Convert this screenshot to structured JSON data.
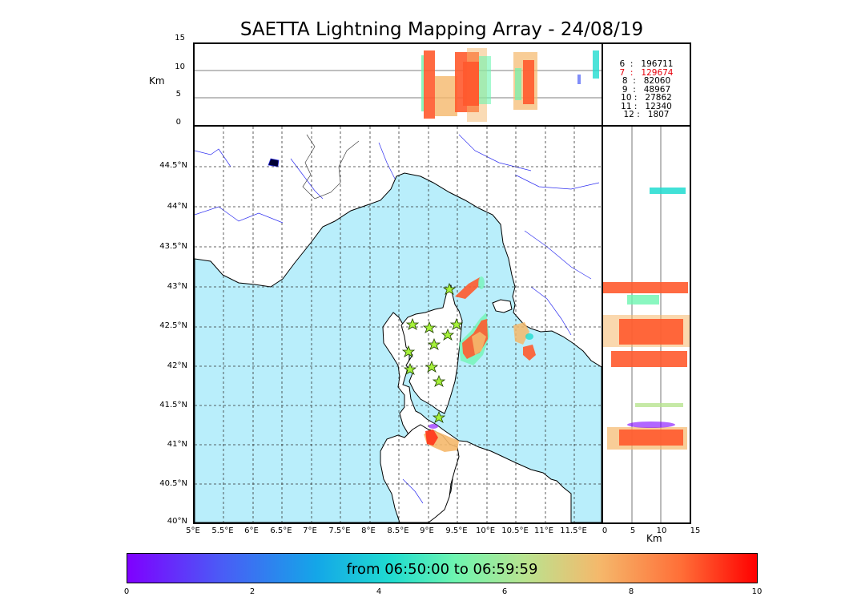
{
  "title": "SAETTA Lightning Mapping Array - 24/08/19",
  "altitude_axis": {
    "unit": "Km",
    "ticks": [
      "15",
      "10",
      "5",
      "0"
    ]
  },
  "side_axis": {
    "unit": "Km",
    "ticks": [
      "0",
      "5",
      "10",
      "15"
    ]
  },
  "map": {
    "lat_ticks": [
      "44.5°N",
      "44°N",
      "43.5°N",
      "43°N",
      "42.5°N",
      "42°N",
      "41.5°N",
      "41°N",
      "40.5°N",
      "40°N"
    ],
    "lon_ticks": [
      "5°E",
      "5.5°E",
      "6°E",
      "6.5°E",
      "7°E",
      "7.5°E",
      "8°E",
      "8.5°E",
      "9°E",
      "9.5°E",
      "10°E",
      "10.5°E",
      "11°E",
      "11.5°E"
    ],
    "sea_color": "#b9eefb",
    "grid": true
  },
  "counts": [
    {
      "level": "6",
      "value": "196711",
      "highlight": false
    },
    {
      "level": "7",
      "value": "129674",
      "highlight": true
    },
    {
      "level": "8",
      "value": "82060",
      "highlight": false
    },
    {
      "level": "9",
      "value": "48967",
      "highlight": false
    },
    {
      "level": "10",
      "value": "27862",
      "highlight": false
    },
    {
      "level": "11",
      "value": "12340",
      "highlight": false
    },
    {
      "level": "12",
      "value": "1807",
      "highlight": false
    }
  ],
  "colorbar": {
    "label": "from 06:50:00 to 06:59:59",
    "ticks": [
      "0",
      "2",
      "4",
      "6",
      "8",
      "10"
    ],
    "colors": [
      "#7f00ff",
      "#14a6e8",
      "#6df5b0",
      "#f5b86b",
      "#ff0000"
    ]
  }
}
